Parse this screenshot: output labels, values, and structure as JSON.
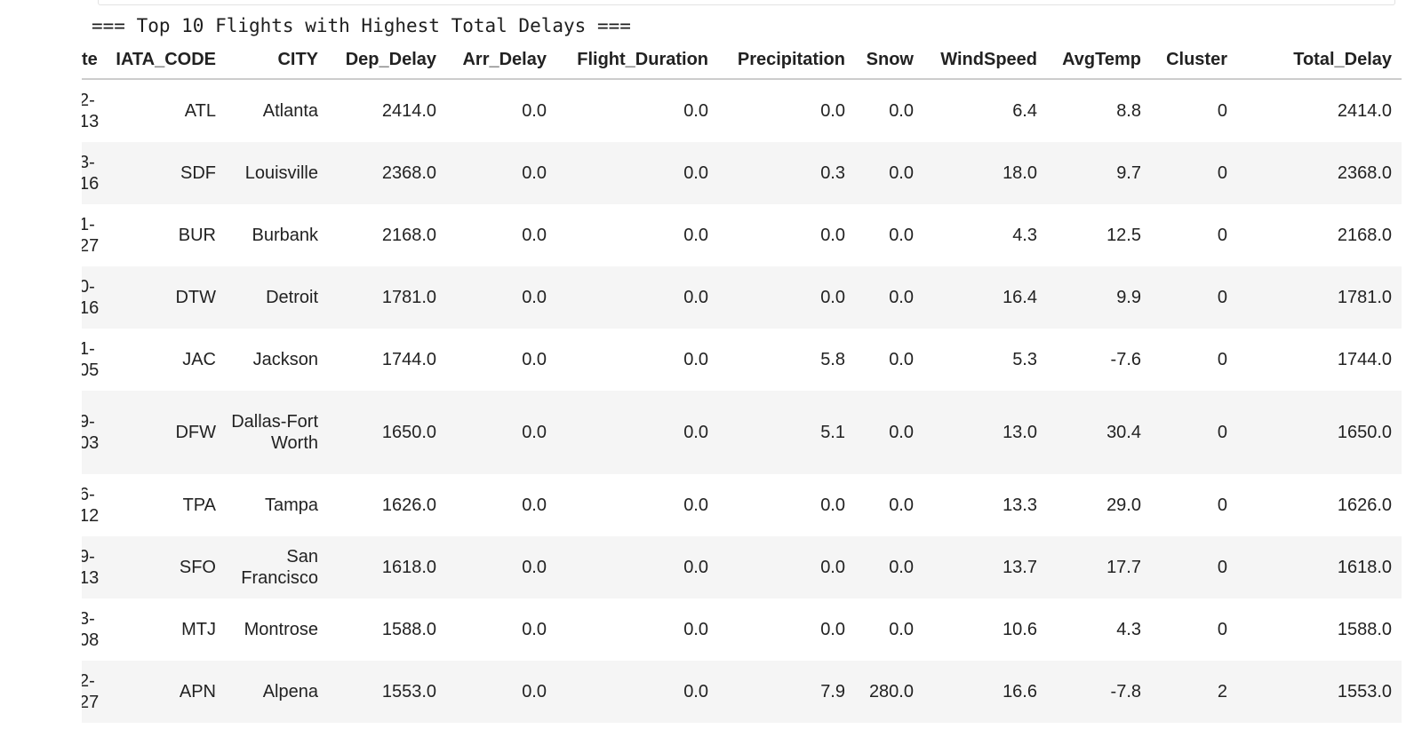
{
  "output": {
    "heading": "=== Top 10 Flights with Highest Total Delays ==="
  },
  "table": {
    "columns": [
      "te",
      "IATA_CODE",
      "CITY",
      "Dep_Delay",
      "Arr_Delay",
      "Flight_Duration",
      "Precipitation",
      "Snow",
      "WindSpeed",
      "AvgTemp",
      "Cluster",
      "Total_Delay"
    ],
    "rows": [
      {
        "date": "2-\n13",
        "iata": "ATL",
        "city": "Atlanta",
        "dep_delay": "2414.0",
        "arr_delay": "0.0",
        "flight_duration": "0.0",
        "precipitation": "0.0",
        "snow": "0.0",
        "windspeed": "6.4",
        "avgtemp": "8.8",
        "cluster": "0",
        "total_delay": "2414.0"
      },
      {
        "date": "3-\n16",
        "iata": "SDF",
        "city": "Louisville",
        "dep_delay": "2368.0",
        "arr_delay": "0.0",
        "flight_duration": "0.0",
        "precipitation": "0.3",
        "snow": "0.0",
        "windspeed": "18.0",
        "avgtemp": "9.7",
        "cluster": "0",
        "total_delay": "2368.0"
      },
      {
        "date": "1-\n27",
        "iata": "BUR",
        "city": "Burbank",
        "dep_delay": "2168.0",
        "arr_delay": "0.0",
        "flight_duration": "0.0",
        "precipitation": "0.0",
        "snow": "0.0",
        "windspeed": "4.3",
        "avgtemp": "12.5",
        "cluster": "0",
        "total_delay": "2168.0"
      },
      {
        "date": "0-\n16",
        "iata": "DTW",
        "city": "Detroit",
        "dep_delay": "1781.0",
        "arr_delay": "0.0",
        "flight_duration": "0.0",
        "precipitation": "0.0",
        "snow": "0.0",
        "windspeed": "16.4",
        "avgtemp": "9.9",
        "cluster": "0",
        "total_delay": "1781.0"
      },
      {
        "date": "1-\n05",
        "iata": "JAC",
        "city": "Jackson",
        "dep_delay": "1744.0",
        "arr_delay": "0.0",
        "flight_duration": "0.0",
        "precipitation": "5.8",
        "snow": "0.0",
        "windspeed": "5.3",
        "avgtemp": "-7.6",
        "cluster": "0",
        "total_delay": "1744.0"
      },
      {
        "date": "9-\n03",
        "iata": "DFW",
        "city": "Dallas-Fort Worth",
        "dep_delay": "1650.0",
        "arr_delay": "0.0",
        "flight_duration": "0.0",
        "precipitation": "5.1",
        "snow": "0.0",
        "windspeed": "13.0",
        "avgtemp": "30.4",
        "cluster": "0",
        "total_delay": "1650.0"
      },
      {
        "date": "6-\n12",
        "iata": "TPA",
        "city": "Tampa",
        "dep_delay": "1626.0",
        "arr_delay": "0.0",
        "flight_duration": "0.0",
        "precipitation": "0.0",
        "snow": "0.0",
        "windspeed": "13.3",
        "avgtemp": "29.0",
        "cluster": "0",
        "total_delay": "1626.0"
      },
      {
        "date": "9-\n13",
        "iata": "SFO",
        "city": "San Francisco",
        "dep_delay": "1618.0",
        "arr_delay": "0.0",
        "flight_duration": "0.0",
        "precipitation": "0.0",
        "snow": "0.0",
        "windspeed": "13.7",
        "avgtemp": "17.7",
        "cluster": "0",
        "total_delay": "1618.0"
      },
      {
        "date": "3-\n08",
        "iata": "MTJ",
        "city": "Montrose",
        "dep_delay": "1588.0",
        "arr_delay": "0.0",
        "flight_duration": "0.0",
        "precipitation": "0.0",
        "snow": "0.0",
        "windspeed": "10.6",
        "avgtemp": "4.3",
        "cluster": "0",
        "total_delay": "1588.0"
      },
      {
        "date": "2-\n27",
        "iata": "APN",
        "city": "Alpena",
        "dep_delay": "1553.0",
        "arr_delay": "0.0",
        "flight_duration": "0.0",
        "precipitation": "7.9",
        "snow": "280.0",
        "windspeed": "16.6",
        "avgtemp": "-7.8",
        "cluster": "2",
        "total_delay": "1553.0"
      }
    ]
  }
}
